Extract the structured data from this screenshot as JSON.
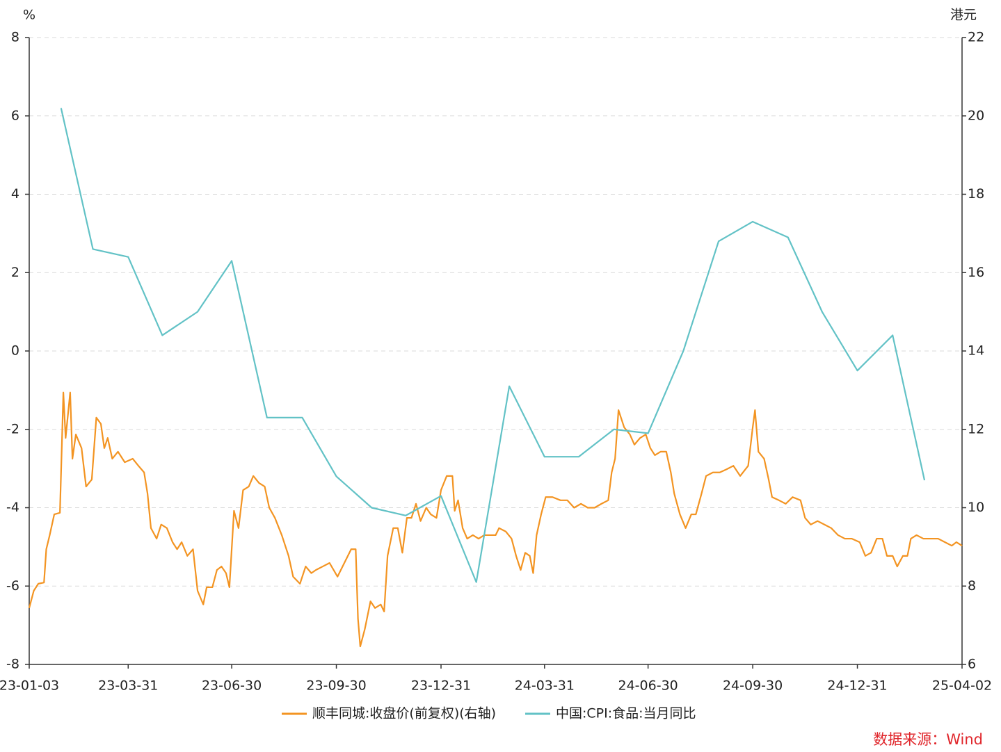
{
  "chart_data": {
    "type": "line",
    "y_label": "%",
    "y2_label": "港元",
    "source": "数据来源：Wind",
    "grid": true,
    "legend": "bottom",
    "xlim": [
      "23-01-03",
      "25-04-02"
    ],
    "xticks": [
      "23-01-03",
      "23-03-31",
      "23-06-30",
      "23-09-30",
      "23-12-31",
      "24-03-31",
      "24-06-30",
      "24-09-30",
      "24-12-31",
      "25-04-02"
    ],
    "ylim": [
      -8,
      8
    ],
    "yticks": [
      -8,
      -6,
      -4,
      -2,
      0,
      2,
      4,
      6,
      8
    ],
    "y2lim": [
      6,
      22
    ],
    "y2ticks": [
      6,
      8,
      10,
      12,
      14,
      16,
      18,
      20,
      22
    ],
    "series": [
      {
        "name": "顺丰同城:收盘价(前复权)(右轴)",
        "color": "#f39422",
        "axis": "y2",
        "x": [
          "23-01-03",
          "23-01-07",
          "23-01-11",
          "23-01-16",
          "23-01-18",
          "23-01-21",
          "23-01-25",
          "23-01-30",
          "23-02-02",
          "23-02-04",
          "23-02-08",
          "23-02-10",
          "23-02-13",
          "23-02-18",
          "23-02-22",
          "23-02-27",
          "23-03-03",
          "23-03-07",
          "23-03-10",
          "23-03-13",
          "23-03-17",
          "23-03-22",
          "23-03-28",
          "23-04-04",
          "23-04-09",
          "23-04-14",
          "23-04-17",
          "23-04-20",
          "23-04-25",
          "23-04-29",
          "23-05-04",
          "23-05-09",
          "23-05-13",
          "23-05-17",
          "23-05-22",
          "23-05-27",
          "23-05-31",
          "23-06-05",
          "23-06-08",
          "23-06-13",
          "23-06-17",
          "23-06-21",
          "23-06-25",
          "23-06-28",
          "23-07-02",
          "23-07-06",
          "23-07-10",
          "23-07-15",
          "23-07-19",
          "23-07-24",
          "23-07-29",
          "23-08-02",
          "23-08-07",
          "23-08-13",
          "23-08-19",
          "23-08-23",
          "23-08-29",
          "23-09-03",
          "23-09-08",
          "23-09-12",
          "23-09-18",
          "23-09-24",
          "23-10-01",
          "23-10-07",
          "23-10-13",
          "23-10-17",
          "23-10-19",
          "23-10-21",
          "23-10-25",
          "23-10-30",
          "23-11-03",
          "23-11-08",
          "23-11-11",
          "23-11-14",
          "23-11-19",
          "23-11-23",
          "23-11-27",
          "23-12-01",
          "23-12-05",
          "23-12-09",
          "23-12-13",
          "23-12-18",
          "23-12-22",
          "23-12-27",
          "23-12-31",
          "24-01-05",
          "24-01-10",
          "24-01-12",
          "24-01-15",
          "24-01-19",
          "24-01-23",
          "24-01-28",
          "24-02-02",
          "24-02-07",
          "24-02-12",
          "24-02-17",
          "24-02-20",
          "24-02-26",
          "24-03-02",
          "24-03-06",
          "24-03-10",
          "24-03-14",
          "24-03-18",
          "24-03-21",
          "24-03-24",
          "24-03-28",
          "24-04-01",
          "24-04-07",
          "24-04-14",
          "24-04-20",
          "24-04-26",
          "24-05-02",
          "24-05-08",
          "24-05-14",
          "24-05-20",
          "24-05-26",
          "24-05-29",
          "24-06-01",
          "24-06-04",
          "24-06-09",
          "24-06-14",
          "24-06-18",
          "24-06-23",
          "24-06-28",
          "24-07-02",
          "24-07-06",
          "24-07-11",
          "24-07-16",
          "24-07-20",
          "24-07-23",
          "24-07-28",
          "24-08-02",
          "24-08-07",
          "24-08-11",
          "24-08-16",
          "24-08-20",
          "24-08-26",
          "24-09-01",
          "24-09-07",
          "24-09-13",
          "24-09-19",
          "24-09-26",
          "24-09-30",
          "24-10-02",
          "24-10-05",
          "24-10-10",
          "24-10-14",
          "24-10-17",
          "24-10-23",
          "24-10-29",
          "24-11-04",
          "24-11-11",
          "24-11-15",
          "24-11-20",
          "24-11-26",
          "24-12-02",
          "24-12-08",
          "24-12-14",
          "24-12-20",
          "24-12-26",
          "25-01-02",
          "25-01-07",
          "25-01-12",
          "25-01-17",
          "25-01-22",
          "25-01-26",
          "25-01-31",
          "25-02-04",
          "25-02-09",
          "25-02-13",
          "25-02-16",
          "25-02-21",
          "25-02-27",
          "25-03-06",
          "25-03-12",
          "25-03-18",
          "25-03-24",
          "25-03-28",
          "25-04-02"
        ],
        "values": [
          7.44,
          7.88,
          8.06,
          8.09,
          8.94,
          9.3,
          9.83,
          9.87,
          12.94,
          11.78,
          12.94,
          11.25,
          11.87,
          11.52,
          10.54,
          10.72,
          12.3,
          12.14,
          11.52,
          11.78,
          11.25,
          11.43,
          11.16,
          11.25,
          11.07,
          10.9,
          10.36,
          9.48,
          9.21,
          9.57,
          9.48,
          9.12,
          8.94,
          9.12,
          8.77,
          8.94,
          7.88,
          7.53,
          7.97,
          7.97,
          8.41,
          8.5,
          8.33,
          7.97,
          9.92,
          9.48,
          10.45,
          10.54,
          10.81,
          10.63,
          10.54,
          10.0,
          9.74,
          9.3,
          8.77,
          8.24,
          8.06,
          8.5,
          8.33,
          8.41,
          8.5,
          8.59,
          8.24,
          8.59,
          8.94,
          8.94,
          7.17,
          6.46,
          6.9,
          7.61,
          7.44,
          7.53,
          7.35,
          8.77,
          9.48,
          9.48,
          8.85,
          9.74,
          9.74,
          10.1,
          9.66,
          10.0,
          9.83,
          9.74,
          10.45,
          10.81,
          10.81,
          9.92,
          10.19,
          9.48,
          9.21,
          9.3,
          9.21,
          9.3,
          9.3,
          9.3,
          9.48,
          9.39,
          9.21,
          8.77,
          8.41,
          8.85,
          8.77,
          8.33,
          9.3,
          9.83,
          10.27,
          10.27,
          10.19,
          10.19,
          10.0,
          10.1,
          10.0,
          10.0,
          10.1,
          10.19,
          10.9,
          11.25,
          12.49,
          12.05,
          11.87,
          11.61,
          11.78,
          11.87,
          11.52,
          11.34,
          11.43,
          11.43,
          10.9,
          10.36,
          9.83,
          9.48,
          9.83,
          9.83,
          10.36,
          10.81,
          10.9,
          10.9,
          10.98,
          11.07,
          10.81,
          11.07,
          12.05,
          12.49,
          11.43,
          11.25,
          10.72,
          10.27,
          10.19,
          10.1,
          10.27,
          10.19,
          9.74,
          9.57,
          9.66,
          9.57,
          9.48,
          9.3,
          9.21,
          9.21,
          9.12,
          8.77,
          8.85,
          9.21,
          9.21,
          8.77,
          8.77,
          8.5,
          8.77,
          8.77,
          9.21,
          9.3,
          9.21,
          9.21,
          9.21,
          9.12,
          9.03,
          9.12,
          9.03
        ]
      },
      {
        "name": "中国:CPI:食品:当月同比",
        "color": "#62c2c6",
        "x": [
          "23-01-31",
          "23-02-28",
          "23-03-31",
          "23-04-30",
          "23-05-31",
          "23-06-30",
          "23-07-31",
          "23-08-31",
          "23-09-30",
          "23-10-31",
          "23-11-30",
          "23-12-31",
          "24-01-31",
          "24-02-29",
          "24-03-31",
          "24-04-30",
          "24-05-31",
          "24-06-30",
          "24-07-31",
          "24-08-31",
          "24-09-30",
          "24-10-31",
          "24-11-30",
          "24-12-31",
          "25-01-31",
          "25-02-28"
        ],
        "values": [
          6.2,
          2.6,
          2.4,
          0.4,
          1.0,
          2.3,
          -1.7,
          -1.7,
          -3.2,
          -4.0,
          -4.2,
          -3.7,
          -5.9,
          -0.9,
          -2.7,
          -2.7,
          -2.0,
          -2.1,
          0.0,
          2.8,
          3.3,
          2.9,
          1.0,
          -0.5,
          0.4,
          -3.3
        ]
      }
    ]
  }
}
